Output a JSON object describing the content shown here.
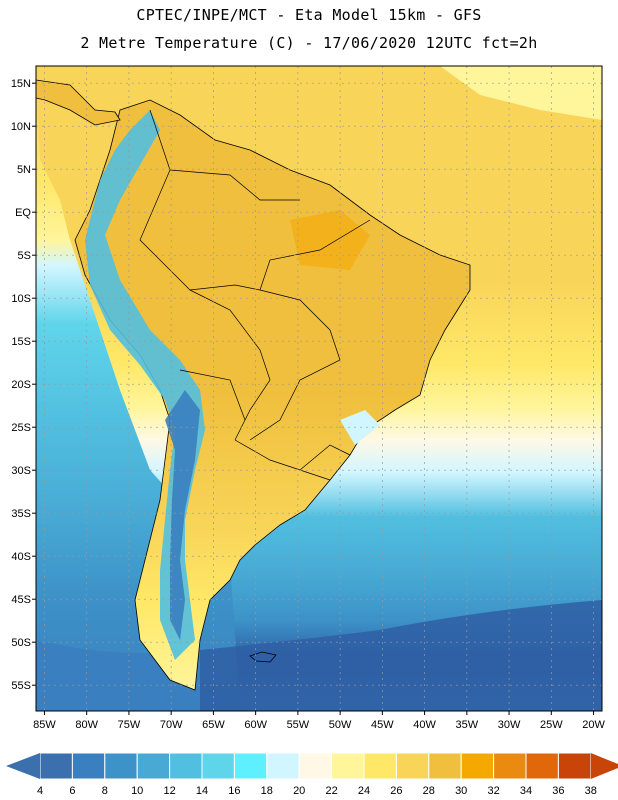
{
  "header": {
    "line1": "CPTEC/INPE/MCT -  Eta Model 15km - GFS",
    "line2": "2 Metre Temperature (C) - 17/06/2020 12UTC fct=2h"
  },
  "map": {
    "lon_range": [
      -86,
      -19
    ],
    "lat_range": [
      17,
      -58
    ],
    "lat_ticks": [
      {
        "value": 15,
        "label": "15N"
      },
      {
        "value": 10,
        "label": "10N"
      },
      {
        "value": 5,
        "label": "5N"
      },
      {
        "value": 0,
        "label": "EQ"
      },
      {
        "value": -5,
        "label": "5S"
      },
      {
        "value": -10,
        "label": "10S"
      },
      {
        "value": -15,
        "label": "15S"
      },
      {
        "value": -20,
        "label": "20S"
      },
      {
        "value": -25,
        "label": "25S"
      },
      {
        "value": -30,
        "label": "30S"
      },
      {
        "value": -35,
        "label": "35S"
      },
      {
        "value": -40,
        "label": "40S"
      },
      {
        "value": -45,
        "label": "45S"
      },
      {
        "value": -50,
        "label": "50S"
      },
      {
        "value": -55,
        "label": "55S"
      }
    ],
    "lon_ticks": [
      {
        "value": -85,
        "label": "85W"
      },
      {
        "value": -80,
        "label": "80W"
      },
      {
        "value": -75,
        "label": "75W"
      },
      {
        "value": -70,
        "label": "70W"
      },
      {
        "value": -65,
        "label": "65W"
      },
      {
        "value": -60,
        "label": "60W"
      },
      {
        "value": -55,
        "label": "55W"
      },
      {
        "value": -50,
        "label": "50W"
      },
      {
        "value": -45,
        "label": "45W"
      },
      {
        "value": -40,
        "label": "40W"
      },
      {
        "value": -35,
        "label": "35W"
      },
      {
        "value": -30,
        "label": "30W"
      },
      {
        "value": -25,
        "label": "25W"
      },
      {
        "value": -20,
        "label": "20W"
      }
    ]
  },
  "colorbar": {
    "labels": [
      "4",
      "6",
      "8",
      "10",
      "12",
      "14",
      "16",
      "18",
      "20",
      "22",
      "24",
      "26",
      "28",
      "30",
      "32",
      "34",
      "36",
      "38"
    ],
    "colors": [
      "#3b6fae",
      "#3a7fbf",
      "#3d92c8",
      "#47a9d4",
      "#51bfe0",
      "#5fd5ea",
      "#5ff0ff",
      "#d2f6ff",
      "#fff8e6",
      "#fff59b",
      "#ffe867",
      "#f8d458",
      "#f0bf3d",
      "#f5a800",
      "#eb8a10",
      "#e0680a",
      "#c84408"
    ],
    "low_color": "#3b6fae",
    "high_color": "#c84408"
  }
}
